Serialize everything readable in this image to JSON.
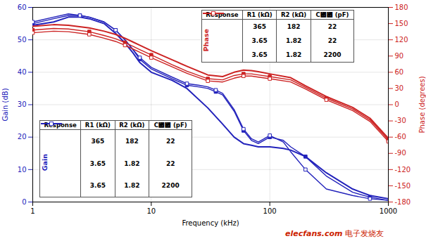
{
  "chart_data": {
    "type": "line",
    "log": "x",
    "grid": true,
    "xlabel": "Frequency (kHz)",
    "ylabel": "Gain (dB)",
    "y2label": "Phase (degrees)",
    "xlim": [
      1,
      1000
    ],
    "xticks": [
      1,
      10,
      100,
      1000
    ],
    "ylim": [
      0,
      60
    ],
    "yticks": [
      0,
      10,
      20,
      30,
      40,
      50,
      60
    ],
    "y2lim": [
      -180,
      180
    ],
    "y2ticks": [
      -180,
      -150,
      -120,
      -90,
      -60,
      -30,
      0,
      30,
      60,
      90,
      120,
      150,
      180
    ],
    "legend_tables": [
      {
        "title": "Gain",
        "legend": "lower left",
        "axis": "y",
        "columns": [
          "Response",
          "R1 (kΩ)",
          "R2 (kΩ)",
          "C₟₟ (pF)"
        ]
      },
      {
        "title": "Phase",
        "legend": "upper right",
        "axis": "y2",
        "columns": [
          "Response",
          "R1 (kΩ)",
          "R2 (kΩ)",
          "C₟₟ (pF)"
        ]
      }
    ],
    "series": [
      {
        "axis": "y",
        "color": "#2222bb",
        "marker": "none",
        "line_style": "solid",
        "legend_cells": [
          "365",
          "182",
          "22"
        ],
        "x": [
          1,
          1.5,
          2,
          2.5,
          3,
          4,
          5,
          6,
          7,
          8,
          10,
          15,
          20,
          30,
          40,
          50,
          60,
          70,
          80,
          100,
          130,
          150,
          200,
          300,
          500,
          700,
          1000
        ],
        "values": [
          54.5,
          55.5,
          57,
          57,
          56.5,
          55,
          52,
          49,
          46,
          43,
          40,
          37.5,
          35,
          29,
          24,
          20,
          18,
          17.5,
          17,
          17,
          16.5,
          16,
          14,
          9,
          4,
          2,
          1
        ]
      },
      {
        "axis": "y",
        "color": "#2222bb",
        "marker": "square",
        "line_style": "solid",
        "legend_cells": [
          "3.65",
          "1.82",
          "22"
        ],
        "x": [
          1,
          1.5,
          2,
          2.5,
          3,
          4,
          5,
          6,
          7,
          8,
          10,
          15,
          20,
          25,
          30,
          35,
          40,
          50,
          60,
          70,
          80,
          100,
          130,
          150,
          200,
          300,
          500,
          700,
          1000
        ],
        "values": [
          55,
          56.5,
          57.5,
          57.5,
          57,
          55.5,
          53,
          50,
          47,
          44,
          41,
          38,
          36,
          35.5,
          35,
          34,
          33,
          28,
          22,
          19,
          18,
          20,
          19,
          17,
          14,
          8,
          3,
          1.5,
          0.5
        ]
      },
      {
        "axis": "y",
        "color": "#2222bb",
        "marker": "open_square",
        "line_style": "solid",
        "legend_cells": [
          "3.65",
          "1.82",
          "2200"
        ],
        "x": [
          1,
          1.5,
          2,
          2.5,
          3,
          4,
          5,
          6,
          7,
          8,
          10,
          15,
          20,
          25,
          30,
          35,
          40,
          50,
          60,
          70,
          80,
          100,
          130,
          150,
          200,
          300,
          500,
          700,
          1000
        ],
        "values": [
          55.5,
          57,
          58,
          57.5,
          57,
          55.5,
          53,
          50,
          47,
          44.5,
          41.5,
          38.5,
          36.5,
          36,
          35.5,
          34.5,
          33.5,
          28.5,
          22.5,
          19.5,
          18.5,
          20.5,
          18.5,
          15.5,
          10,
          4,
          2,
          1,
          0.5
        ]
      },
      {
        "axis": "y2",
        "color": "#cc2222",
        "marker": "none",
        "line_style": "solid",
        "legend_cells": [
          "365",
          "182",
          "22"
        ],
        "x": [
          1,
          1.5,
          2,
          3,
          4,
          5,
          6,
          7,
          8,
          10,
          15,
          20,
          30,
          40,
          50,
          60,
          70,
          80,
          100,
          150,
          200,
          300,
          500,
          700,
          1000
        ],
        "values": [
          145,
          148,
          147,
          142,
          136,
          130,
          123,
          116,
          110,
          100,
          83,
          71,
          55,
          52,
          60,
          64,
          63,
          61,
          57,
          50,
          35,
          15,
          -5,
          -25,
          -62
        ]
      },
      {
        "axis": "y2",
        "color": "#cc2222",
        "marker": "square",
        "line_style": "solid",
        "legend_cells": [
          "3.65",
          "1.82",
          "22"
        ],
        "x": [
          1,
          1.5,
          2,
          3,
          4,
          5,
          6,
          7,
          8,
          10,
          15,
          20,
          30,
          40,
          50,
          60,
          70,
          80,
          100,
          150,
          200,
          300,
          500,
          700,
          1000
        ],
        "values": [
          138,
          141,
          140,
          135,
          128,
          122,
          115,
          108,
          102,
          92,
          74,
          62,
          48,
          46,
          54,
          57,
          57,
          55,
          52,
          46,
          32,
          12,
          -8,
          -28,
          -65
        ]
      },
      {
        "axis": "y2",
        "color": "#cc2222",
        "marker": "open_square",
        "line_style": "solid",
        "legend_cells": [
          "3.65",
          "1.82",
          "2200"
        ],
        "x": [
          1,
          1.5,
          2,
          3,
          4,
          5,
          6,
          7,
          8,
          10,
          15,
          20,
          30,
          40,
          50,
          60,
          70,
          80,
          100,
          150,
          200,
          300,
          500,
          700,
          1000
        ],
        "values": [
          133,
          136,
          135,
          130,
          123,
          117,
          110,
          103,
          97,
          87,
          70,
          58,
          44,
          42,
          49,
          53,
          53,
          51,
          48,
          42,
          29,
          9,
          -11,
          -31,
          -68
        ]
      }
    ],
    "annotations": [
      {
        "text": "elecfans.com",
        "color": "#cc2200"
      },
      {
        "text": " 电子发烧友",
        "color": "#cc2200"
      }
    ]
  }
}
